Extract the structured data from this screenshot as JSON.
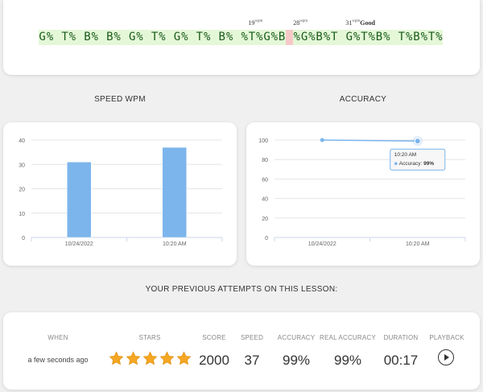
{
  "typing": {
    "text": "G% T% B% B% G% T% G% T% B% %T%G%B %G%B%T G%T%B% T%B%T%",
    "cursor_index": 33,
    "markers": [
      {
        "label": "19",
        "unit": "wpm",
        "suffix": "",
        "char_index": 28
      },
      {
        "label": "28",
        "unit": "wpm",
        "suffix": "",
        "char_index": 34
      },
      {
        "label": "31",
        "unit": "wpm",
        "suffix": "Good",
        "char_index": 41
      }
    ]
  },
  "sections": {
    "speed_title": "SPEED WPM",
    "accuracy_title": "ACCURACY",
    "attempts_title": "YOUR PREVIOUS ATTEMPTS ON THIS LESSON:"
  },
  "chart_data": [
    {
      "type": "bar",
      "title": "SPEED WPM",
      "categories": [
        "10/24/2022",
        "10:20 AM"
      ],
      "values": [
        31,
        37
      ],
      "ylim": [
        0,
        40
      ],
      "yticks": [
        0,
        10,
        20,
        30,
        40
      ],
      "color": "#7cb5ec",
      "grid": true
    },
    {
      "type": "line",
      "title": "ACCURACY",
      "categories": [
        "10/24/2022",
        "10:20 AM"
      ],
      "values": [
        100,
        99
      ],
      "ylim": [
        0,
        100
      ],
      "yticks": [
        0,
        20,
        40,
        60,
        80,
        100
      ],
      "color": "#7cb5ec",
      "grid": true,
      "tooltip": {
        "title": "10:20 AM",
        "series": "Accuracy",
        "value": "99%"
      }
    }
  ],
  "attempts": {
    "headers": [
      "WHEN",
      "STARS",
      "SCORE",
      "SPEED",
      "ACCURACY",
      "REAL ACCURACY",
      "DURATION",
      "PLAYBACK"
    ],
    "row": {
      "when": "a few seconds ago",
      "stars": 5,
      "score": "2000",
      "speed": "37",
      "accuracy": "99%",
      "real_accuracy": "99%",
      "duration": "00:17"
    },
    "star_color": "#f5a623"
  }
}
